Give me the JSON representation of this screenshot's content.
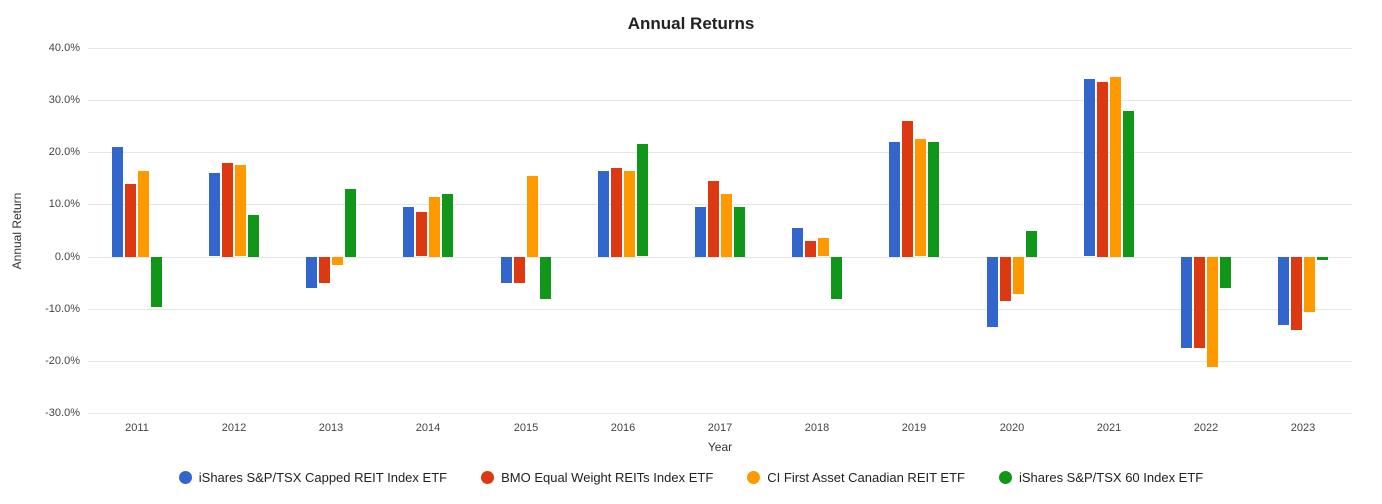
{
  "chart_data": {
    "type": "bar",
    "title": "Annual Returns",
    "xlabel": "Year",
    "ylabel": "Annual Return",
    "categories": [
      "2011",
      "2012",
      "2013",
      "2014",
      "2015",
      "2016",
      "2017",
      "2018",
      "2019",
      "2020",
      "2021",
      "2022",
      "2023"
    ],
    "series": [
      {
        "name": "iShares S&P/TSX Capped REIT Index ETF",
        "color": "#3366CC",
        "values": [
          21.0,
          16.0,
          -6.0,
          9.5,
          -5.0,
          16.5,
          9.5,
          5.5,
          22.0,
          -13.5,
          34.0,
          -17.5,
          -13.0
        ]
      },
      {
        "name": "BMO Equal Weight REITs Index ETF",
        "color": "#DC3912",
        "values": [
          14.0,
          18.0,
          -5.0,
          8.5,
          -5.0,
          17.0,
          14.5,
          3.0,
          26.0,
          -8.5,
          33.5,
          -17.5,
          -14.0
        ]
      },
      {
        "name": "CI First Asset Canadian REIT ETF",
        "color": "#FF9900",
        "values": [
          16.5,
          17.5,
          -1.5,
          11.5,
          15.5,
          16.5,
          12.0,
          3.5,
          22.5,
          -7.0,
          34.5,
          -21.0,
          -10.5
        ]
      },
      {
        "name": "iShares S&P/TSX 60 Index ETF",
        "color": "#109618",
        "values": [
          -9.5,
          8.0,
          13.0,
          12.0,
          -8.0,
          21.5,
          9.5,
          -8.0,
          22.0,
          5.0,
          28.0,
          -6.0,
          -0.5
        ]
      }
    ],
    "ylim": [
      -30,
      40
    ],
    "yticks": [
      40,
      30,
      20,
      10,
      0,
      -10,
      -20,
      -30
    ],
    "ytick_labels": [
      "40.0%",
      "30.0%",
      "20.0%",
      "10.0%",
      "0.0%",
      "-10.0%",
      "-20.0%",
      "-30.0%"
    ],
    "grid": true,
    "legend_position": "bottom"
  }
}
